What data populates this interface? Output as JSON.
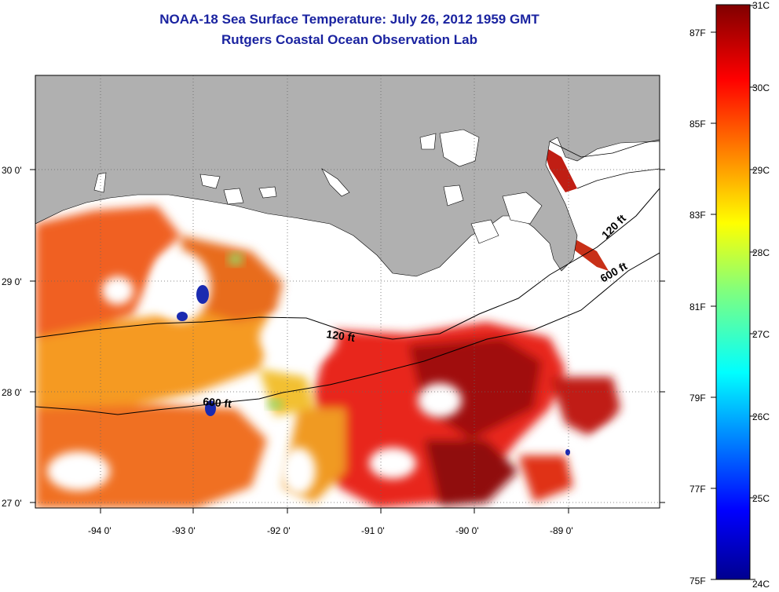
{
  "title_line1": "NOAA-18 Sea Surface Temperature:  July 26, 2012 1959 GMT",
  "title_line2": "Rutgers Coastal Ocean Observation Lab",
  "map": {
    "lat_labels": [
      "30 0'",
      "29 0'",
      "28 0'",
      "27 0'"
    ],
    "lon_labels": [
      "-94 0'",
      "-93 0'",
      "-92 0'",
      "-91 0'",
      "-90 0'",
      "-89 0'"
    ],
    "contour_labels": [
      "120 ft",
      "600 ft",
      "120 ft",
      "600 ft"
    ],
    "land_color": "#b0b0b0",
    "no_data_color": "#ffffff"
  },
  "colorbar": {
    "celsius_labels": [
      "31C",
      "30C",
      "29C",
      "28C",
      "27C",
      "26C",
      "25C",
      "24C"
    ],
    "fahrenheit_labels": [
      "87F",
      "85F",
      "83F",
      "81F",
      "79F",
      "77F",
      "75F"
    ],
    "min_c": 24,
    "max_c": 31,
    "colormap": "jet"
  }
}
